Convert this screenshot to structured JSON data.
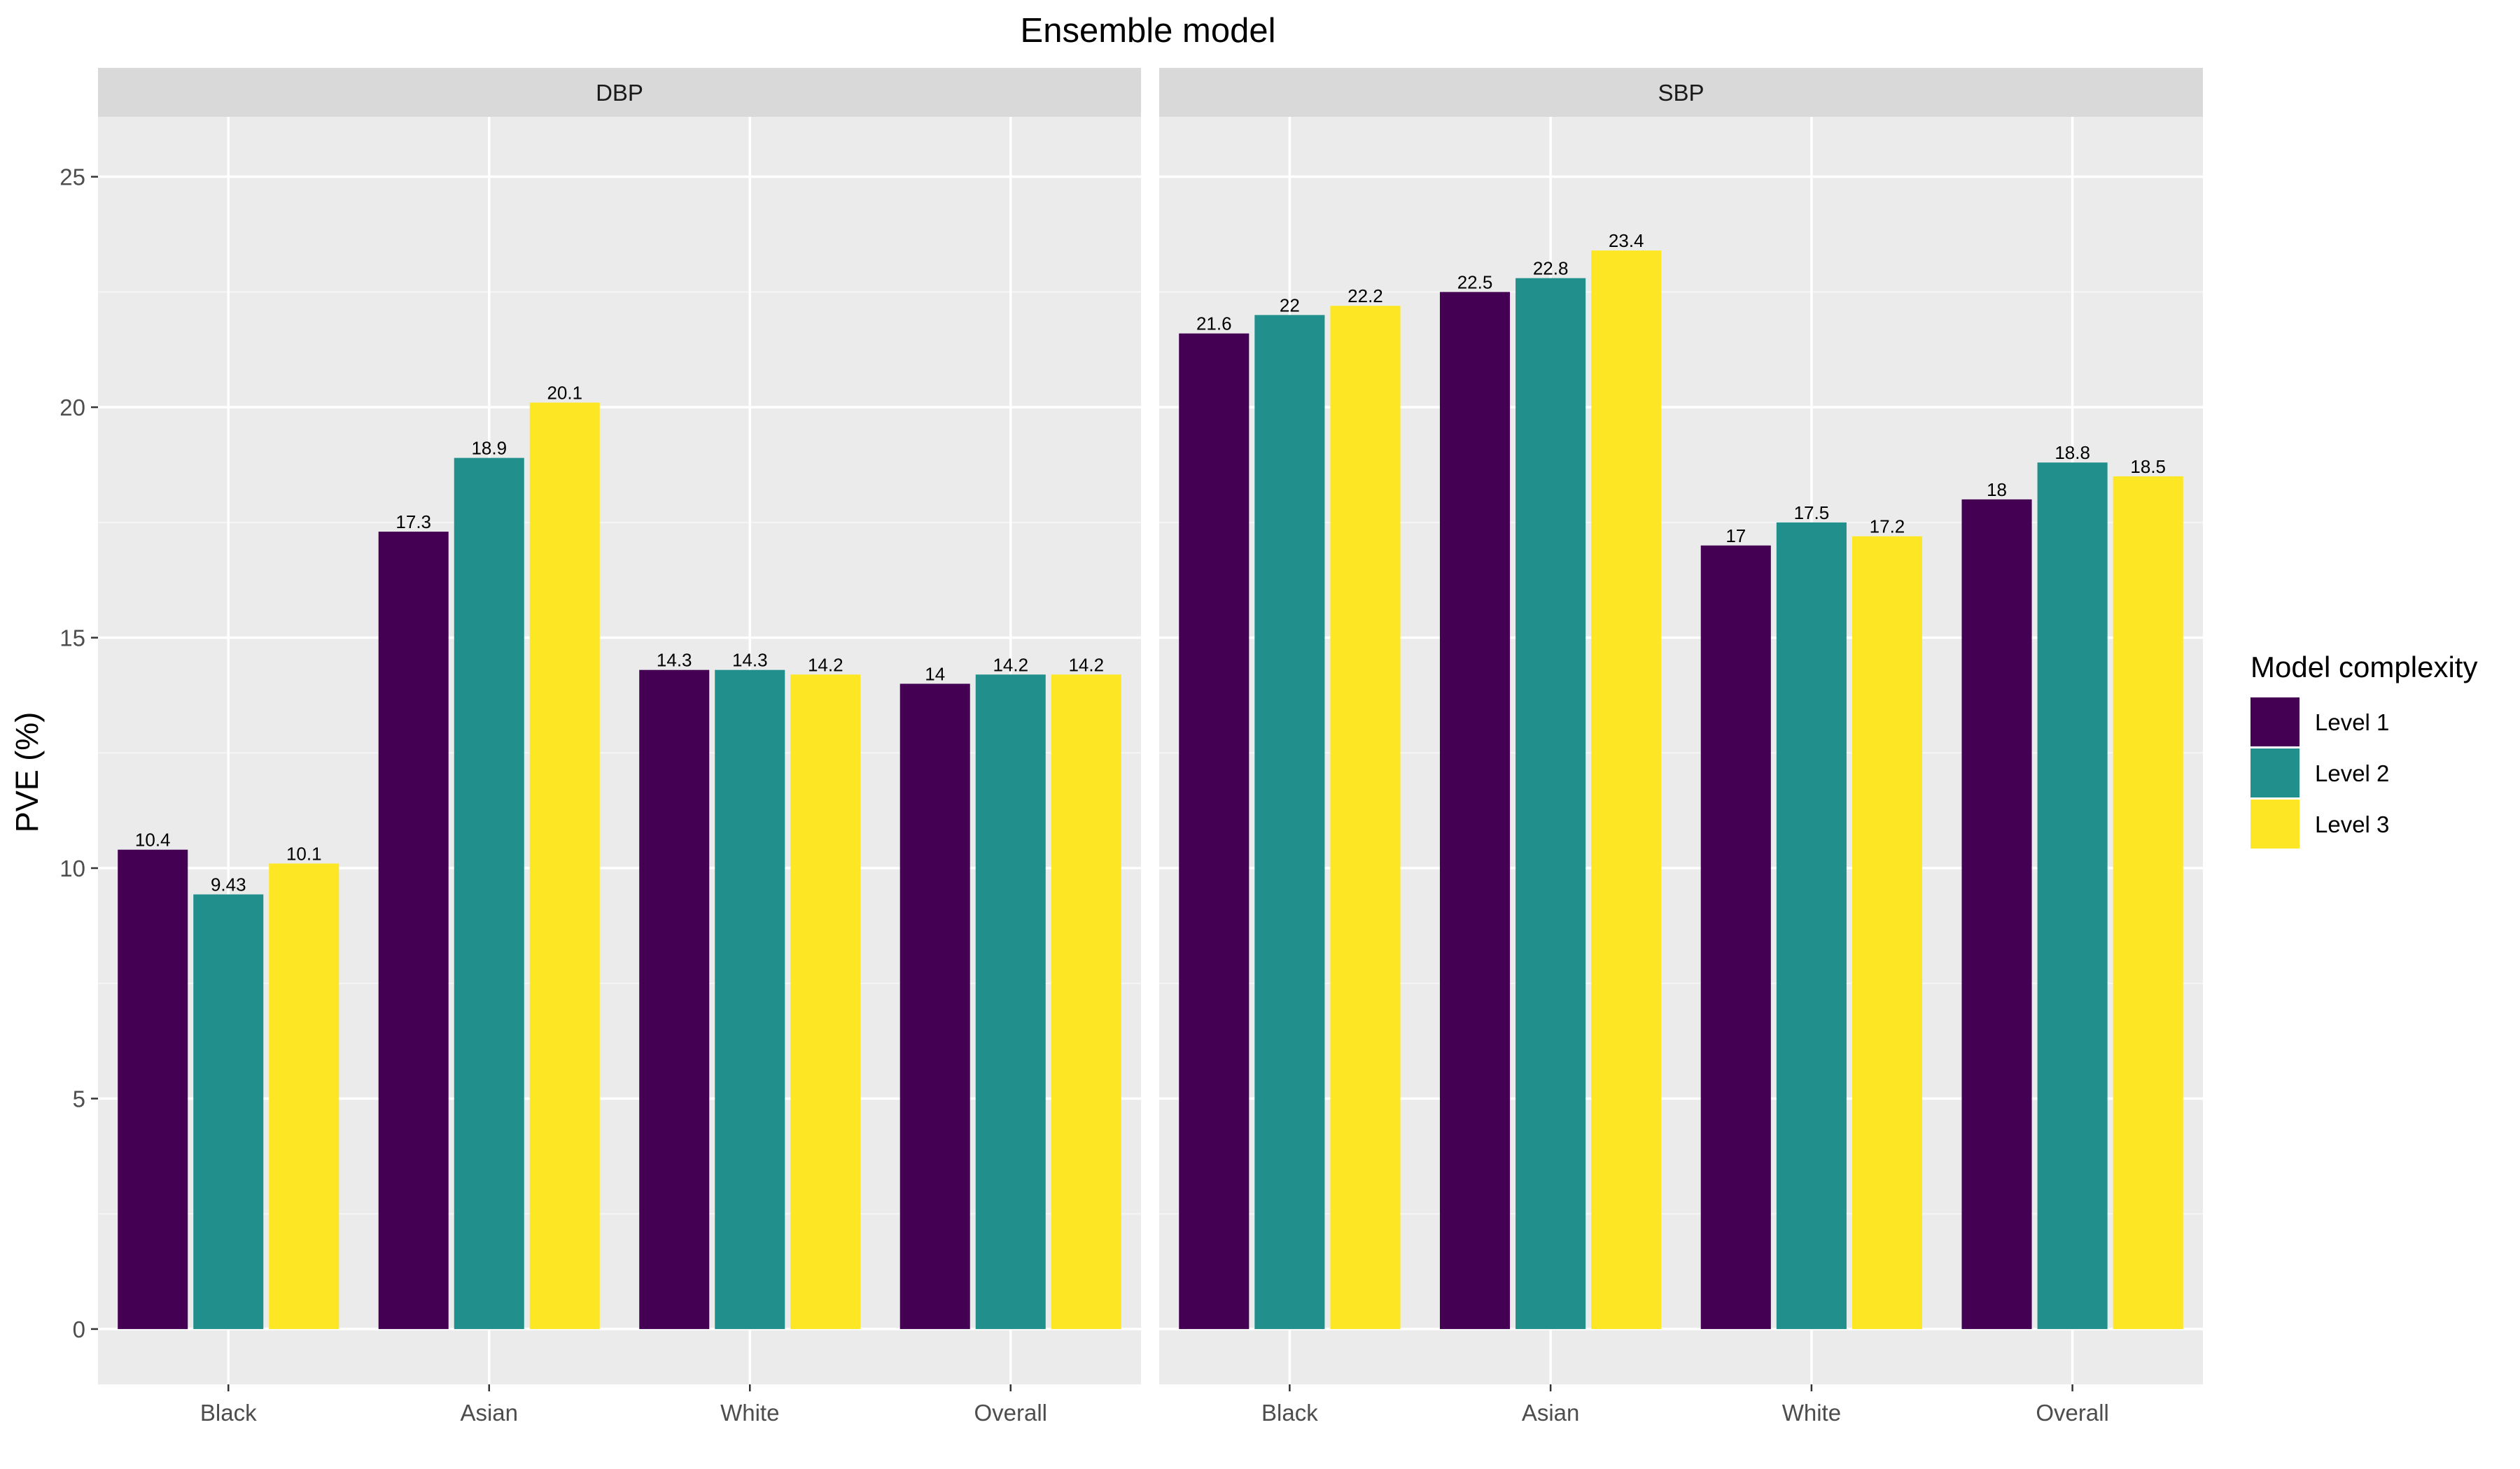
{
  "chart_data": {
    "type": "bar",
    "title": "Ensemble model",
    "xlabel": "",
    "ylabel": "PVE (%)",
    "ylim": [
      -1.2,
      26.3
    ],
    "yticks": [
      0,
      5,
      10,
      15,
      20,
      25
    ],
    "categories": [
      "Black",
      "Asian",
      "White",
      "Overall"
    ],
    "legend": {
      "title": "Model complexity",
      "placement": "right",
      "entries": [
        "Level 1",
        "Level 2",
        "Level 3"
      ]
    },
    "colors": [
      "#440154",
      "#21908C",
      "#FDE725"
    ],
    "grid": true,
    "panels": [
      {
        "name": "DBP",
        "series": [
          {
            "name": "Level 1",
            "values": [
              10.4,
              17.3,
              14.3,
              14
            ],
            "labels": [
              "10.4",
              "17.3",
              "14.3",
              "14"
            ]
          },
          {
            "name": "Level 2",
            "values": [
              9.43,
              18.9,
              14.3,
              14.2
            ],
            "labels": [
              "9.43",
              "18.9",
              "14.3",
              "14.2"
            ]
          },
          {
            "name": "Level 3",
            "values": [
              10.1,
              20.1,
              14.2,
              14.2
            ],
            "labels": [
              "10.1",
              "20.1",
              "14.2",
              "14.2"
            ]
          }
        ]
      },
      {
        "name": "SBP",
        "series": [
          {
            "name": "Level 1",
            "values": [
              21.6,
              22.5,
              17,
              18
            ],
            "labels": [
              "21.6",
              "22.5",
              "17",
              "18"
            ]
          },
          {
            "name": "Level 2",
            "values": [
              22,
              22.8,
              17.5,
              18.8
            ],
            "labels": [
              "22",
              "22.8",
              "17.5",
              "18.8"
            ]
          },
          {
            "name": "Level 3",
            "values": [
              22.2,
              23.4,
              17.2,
              18.5
            ],
            "labels": [
              "22.2",
              "23.4",
              "17.2",
              "18.5"
            ]
          }
        ]
      }
    ]
  }
}
